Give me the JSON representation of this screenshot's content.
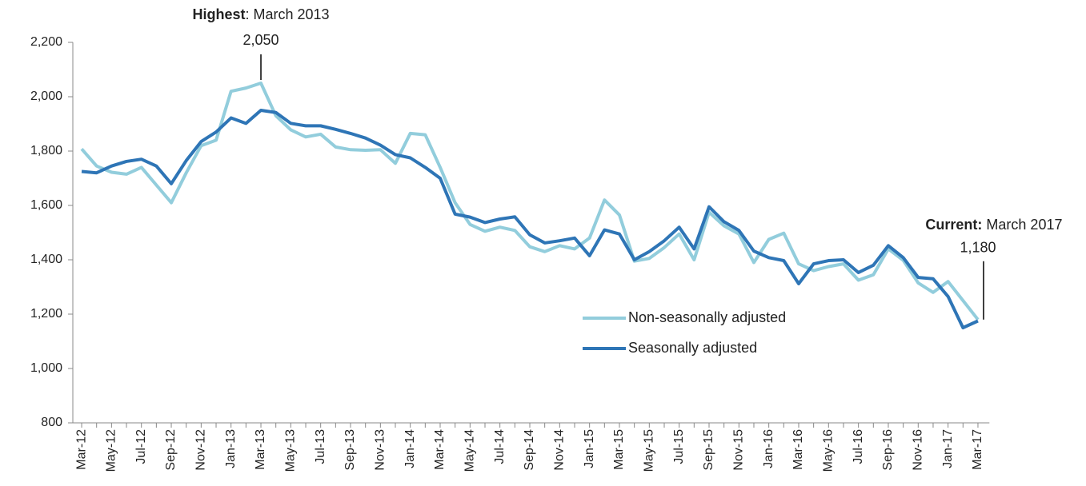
{
  "chart_data": {
    "type": "line",
    "categories": [
      "Mar-12",
      null,
      "May-12",
      null,
      "Jul-12",
      null,
      "Sep-12",
      null,
      "Nov-12",
      null,
      "Jan-13",
      null,
      "Mar-13",
      null,
      "May-13",
      null,
      "Jul-13",
      null,
      "Sep-13",
      null,
      "Nov-13",
      null,
      "Jan-14",
      null,
      "Mar-14",
      null,
      "May-14",
      null,
      "Jul-14",
      null,
      "Sep-14",
      null,
      "Nov-14",
      null,
      "Jan-15",
      null,
      "Mar-15",
      null,
      "May-15",
      null,
      "Jul-15",
      null,
      "Sep-15",
      null,
      "Nov-15",
      null,
      "Jan-16",
      null,
      "Mar-16",
      null,
      "May-16",
      null,
      "Jul-16",
      null,
      "Sep-16",
      null,
      "Nov-16",
      null,
      "Jan-17",
      null,
      "Mar-17"
    ],
    "series": [
      {
        "name": "Non-seasonally adjusted",
        "color": "#92cddc",
        "values": [
          1808,
          1745,
          1722,
          1715,
          1740,
          1675,
          1610,
          1720,
          1820,
          1840,
          2020,
          2032,
          2050,
          1930,
          1878,
          1852,
          1862,
          1815,
          1805,
          1803,
          1805,
          1755,
          1865,
          1860,
          1740,
          1610,
          1530,
          1505,
          1520,
          1508,
          1448,
          1430,
          1452,
          1440,
          1480,
          1620,
          1565,
          1395,
          1405,
          1445,
          1495,
          1400,
          1575,
          1525,
          1495,
          1390,
          1475,
          1498,
          1385,
          1360,
          1375,
          1385,
          1325,
          1345,
          1440,
          1398,
          1315,
          1280,
          1320,
          1250,
          1180
        ]
      },
      {
        "name": "Seasonally adjusted",
        "color": "#2e75b6",
        "values": [
          1725,
          1720,
          1745,
          1762,
          1770,
          1745,
          1680,
          1765,
          1835,
          1870,
          1922,
          1902,
          1950,
          1942,
          1902,
          1893,
          1893,
          1880,
          1865,
          1848,
          1822,
          1787,
          1775,
          1740,
          1700,
          1568,
          1557,
          1537,
          1550,
          1558,
          1492,
          1462,
          1470,
          1480,
          1415,
          1510,
          1495,
          1400,
          1430,
          1470,
          1520,
          1440,
          1595,
          1540,
          1508,
          1432,
          1408,
          1397,
          1312,
          1385,
          1397,
          1400,
          1353,
          1380,
          1452,
          1408,
          1335,
          1330,
          1265,
          1150,
          1175
        ]
      }
    ],
    "ylim": [
      800,
      2200
    ],
    "yticks": [
      {
        "value": 800,
        "label": "800"
      },
      {
        "value": 1000,
        "label": "1,000"
      },
      {
        "value": 1200,
        "label": "1,200"
      },
      {
        "value": 1400,
        "label": "1,400"
      },
      {
        "value": 1600,
        "label": "1,600"
      },
      {
        "value": 1800,
        "label": "1,800"
      },
      {
        "value": 2000,
        "label": "2,000"
      },
      {
        "value": 2200,
        "label": "2,200"
      }
    ],
    "annotations": [
      {
        "title": "Highest",
        "text": ": March 2013",
        "x": "Mar-13",
        "value": 2050,
        "value_label": "2,050"
      },
      {
        "title": "Current:",
        "text": " March 2017",
        "x": "Mar-17",
        "value": 1180,
        "value_label": "1,180"
      }
    ]
  }
}
